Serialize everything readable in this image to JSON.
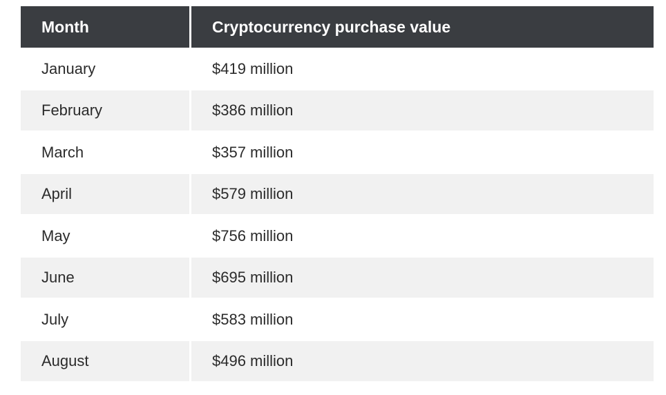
{
  "table": {
    "headers": {
      "month": "Month",
      "value": "Cryptocurrency purchase value"
    },
    "rows": [
      {
        "month": "January",
        "value": "$419 million"
      },
      {
        "month": "February",
        "value": "$386 million"
      },
      {
        "month": "March",
        "value": "$357 million"
      },
      {
        "month": "April",
        "value": "$579 million"
      },
      {
        "month": "May",
        "value": "$756 million"
      },
      {
        "month": "June",
        "value": "$695 million"
      },
      {
        "month": "July",
        "value": "$583 million"
      },
      {
        "month": "August",
        "value": "$496 million"
      }
    ]
  },
  "colors": {
    "header_bg": "#3a3d41",
    "header_text": "#ffffff",
    "stripe_bg": "#f1f1f1",
    "text": "#2b2b2b"
  }
}
